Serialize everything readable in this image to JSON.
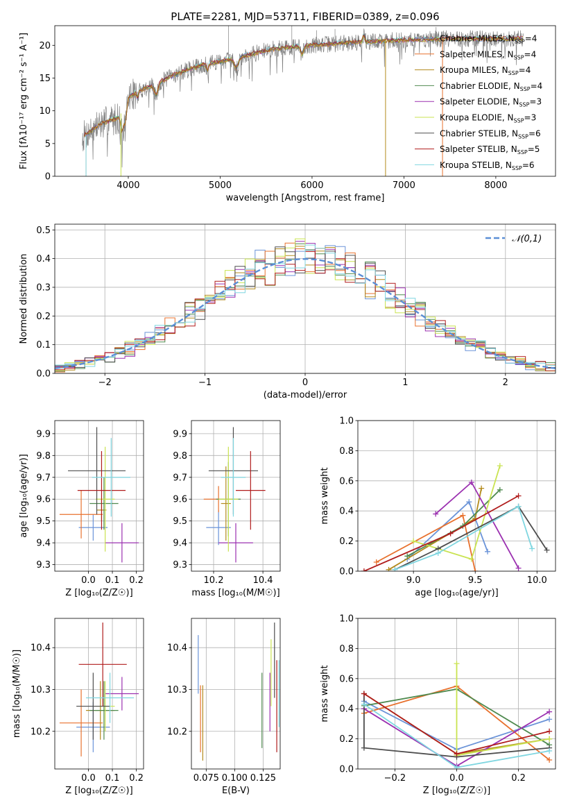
{
  "series_colors": [
    "#6a93d8",
    "#e8712d",
    "#b38a1c",
    "#4f8a4f",
    "#9b30b0",
    "#c9e350",
    "#4d4d4d",
    "#b01c1c",
    "#7fd6e0"
  ],
  "chart_data": [
    {
      "id": "spectrum",
      "type": "line",
      "title": "PLATE=2281, MJD=53711, FIBERID=0389, z=0.096",
      "xlabel": "wavelength [Angstrom, rest frame]",
      "ylabel": "Flux [fλ10⁻¹⁷ erg cm⁻² s⁻¹ A⁻¹]",
      "xlim": [
        3200,
        8650
      ],
      "ylim": [
        0,
        23
      ],
      "xticks": [
        4000,
        5000,
        6000,
        7000,
        8000
      ],
      "yticks": [
        0,
        5,
        10,
        15,
        20
      ],
      "wavelength_range": [
        3500,
        8300
      ],
      "grid": false,
      "legend_position": "upper-right",
      "legend": [
        "Chabrier MILES, N_SSP=4",
        "Salpeter MILES, N_SSP=4",
        "Kroupa MILES, N_SSP=4",
        "Chabrier ELODIE, N_SSP=4",
        "Salpeter ELODIE, N_SSP=3",
        "Kroupa ELODIE, N_SSP=3",
        "Chabrier STELIB, N_SSP=6",
        "Salpeter STELIB, N_SSP=5",
        "Kroupa STELIB, N_SSP=6"
      ],
      "continuum": {
        "x": [
          3500,
          3700,
          3900,
          4000,
          4100,
          4300,
          4500,
          4800,
          5000,
          5300,
          5600,
          6000,
          6500,
          7000,
          7500,
          8000,
          8300
        ],
        "y": [
          6,
          8,
          9,
          12,
          13,
          14,
          15.5,
          17,
          17.5,
          18.5,
          19.5,
          20,
          20.5,
          20.8,
          21,
          21,
          21
        ]
      },
      "model_cutoffs_x": [
        3540,
        3540,
        3920,
        6800,
        7420
      ]
    },
    {
      "id": "residuals",
      "type": "histogram",
      "xlabel": "(data-model)/error",
      "ylabel": "Normed distribution",
      "xlim": [
        -2.5,
        2.5
      ],
      "ylim": [
        0,
        0.52
      ],
      "xticks": [
        -2,
        -1,
        0,
        1,
        2
      ],
      "yticks": [
        0,
        0.1,
        0.2,
        0.3,
        0.4,
        0.5
      ],
      "bin_width": 0.1,
      "grid": true,
      "legend_position": "upper-right",
      "legend": [
        "𝒩(0,1)"
      ]
    },
    {
      "id": "age-vs-z",
      "type": "scatter",
      "xlabel": "Z [log₁₀(Z/Z☉)]",
      "ylabel": "age  [log₁₀(age/yr)]",
      "xlim": [
        -0.14,
        0.23
      ],
      "ylim": [
        9.27,
        9.96
      ],
      "xticks": [
        0.0,
        0.1,
        0.2
      ],
      "yticks": [
        9.3,
        9.4,
        9.5,
        9.6,
        9.7,
        9.8,
        9.9
      ],
      "grid": true,
      "points": [
        {
          "x": 0.02,
          "xerr": 0.06,
          "y": 9.47,
          "yerr": 0.06
        },
        {
          "x": -0.03,
          "xerr": 0.09,
          "y": 9.53,
          "yerr": 0.11
        },
        {
          "x": 0.055,
          "xerr": 0.02,
          "y": 9.55,
          "yerr": 0.05
        },
        {
          "x": 0.065,
          "xerr": 0.06,
          "y": 9.58,
          "yerr": 0.12
        },
        {
          "x": 0.14,
          "xerr": 0.07,
          "y": 9.4,
          "yerr": 0.09
        },
        {
          "x": 0.07,
          "xerr": 0.04,
          "y": 9.6,
          "yerr": 0.24
        },
        {
          "x": 0.035,
          "xerr": 0.12,
          "y": 9.73,
          "yerr": 0.2
        },
        {
          "x": 0.055,
          "xerr": 0.1,
          "y": 9.64,
          "yerr": 0.18
        },
        {
          "x": 0.095,
          "xerr": 0.08,
          "y": 9.7,
          "yerr": 0.18
        }
      ]
    },
    {
      "id": "age-vs-mass",
      "type": "scatter",
      "xlabel": "mass [log₁₀(M/M☉)]",
      "ylabel": "",
      "xlim": [
        10.11,
        10.47
      ],
      "ylim": [
        9.27,
        9.96
      ],
      "xticks": [
        10.2,
        10.4
      ],
      "yticks": [
        9.3,
        9.4,
        9.5,
        9.6,
        9.7,
        9.8,
        9.9
      ],
      "grid": true,
      "points": [
        {
          "x": 10.22,
          "xerr": 0.05,
          "y": 9.47,
          "yerr": 0.08
        },
        {
          "x": 10.22,
          "xerr": 0.06,
          "y": 9.6,
          "yerr": 0.06
        },
        {
          "x": 10.25,
          "xerr": 0.02,
          "y": 9.58,
          "yerr": 0.17
        },
        {
          "x": 10.26,
          "xerr": 0.05,
          "y": 9.6,
          "yerr": 0.17
        },
        {
          "x": 10.29,
          "xerr": 0.07,
          "y": 9.4,
          "yerr": 0.09
        },
        {
          "x": 10.26,
          "xerr": 0.04,
          "y": 9.6,
          "yerr": 0.24
        },
        {
          "x": 10.28,
          "xerr": 0.1,
          "y": 9.73,
          "yerr": 0.2
        },
        {
          "x": 10.35,
          "xerr": 0.06,
          "y": 9.64,
          "yerr": 0.18
        },
        {
          "x": 10.28,
          "xerr": 0.05,
          "y": 9.7,
          "yerr": 0.18
        }
      ]
    },
    {
      "id": "mass-weight-vs-age",
      "type": "line",
      "xlabel": "age  [log₁₀(age/yr)]",
      "ylabel": "mass weight",
      "xlim": [
        8.55,
        10.15
      ],
      "ylim": [
        0,
        1
      ],
      "xticks": [
        9.0,
        9.5,
        10.0
      ],
      "yticks": [
        0.0,
        0.2,
        0.4,
        0.6,
        0.8,
        1.0
      ],
      "grid": true,
      "series": [
        {
          "x": [
            8.95,
            9.45,
            9.6
          ],
          "y": [
            0.08,
            0.46,
            0.13
          ]
        },
        {
          "x": [
            8.7,
            9.4,
            9.5
          ],
          "y": [
            0.06,
            0.37,
            0.0
          ]
        },
        {
          "x": [
            8.8,
            9.5,
            9.55
          ],
          "y": [
            0.01,
            0.35,
            0.55
          ]
        },
        {
          "x": [
            8.95,
            9.4,
            9.7
          ],
          "y": [
            0.1,
            0.3,
            0.54
          ]
        },
        {
          "x": [
            9.18,
            9.47,
            9.85
          ],
          "y": [
            0.38,
            0.59,
            0.02
          ]
        },
        {
          "x": [
            9.0,
            9.47,
            9.7
          ],
          "y": [
            0.2,
            0.08,
            0.7
          ]
        },
        {
          "x": [
            8.85,
            9.2,
            9.85,
            10.08
          ],
          "y": [
            0.01,
            0.15,
            0.43,
            0.14
          ]
        },
        {
          "x": [
            8.6,
            9.3,
            9.85
          ],
          "y": [
            0.0,
            0.25,
            0.5
          ]
        },
        {
          "x": [
            8.85,
            9.2,
            9.85,
            9.96
          ],
          "y": [
            0.01,
            0.12,
            0.43,
            0.15
          ]
        }
      ]
    },
    {
      "id": "mass-vs-z",
      "type": "scatter",
      "xlabel": "Z [log₁₀(Z/Z☉)]",
      "ylabel": "mass [log₁₀(M/M☉)]",
      "xlim": [
        -0.14,
        0.23
      ],
      "ylim": [
        10.11,
        10.47
      ],
      "xticks": [
        0.0,
        0.1,
        0.2
      ],
      "yticks": [
        10.2,
        10.3,
        10.4
      ],
      "grid": true,
      "points": [
        {
          "x": 0.02,
          "xerr": 0.07,
          "y": 10.21,
          "yerr": 0.06
        },
        {
          "x": -0.03,
          "xerr": 0.09,
          "y": 10.22,
          "yerr": 0.08
        },
        {
          "x": 0.05,
          "xerr": 0.06,
          "y": 10.25,
          "yerr": 0.07
        },
        {
          "x": 0.065,
          "xerr": 0.06,
          "y": 10.25,
          "yerr": 0.07
        },
        {
          "x": 0.14,
          "xerr": 0.07,
          "y": 10.29,
          "yerr": 0.04
        },
        {
          "x": 0.07,
          "xerr": 0.04,
          "y": 10.26,
          "yerr": 0.06
        },
        {
          "x": 0.02,
          "xerr": 0.07,
          "y": 10.26,
          "yerr": 0.08
        },
        {
          "x": 0.06,
          "xerr": 0.1,
          "y": 10.36,
          "yerr": 0.1
        },
        {
          "x": 0.09,
          "xerr": 0.1,
          "y": 10.28,
          "yerr": 0.06
        }
      ]
    },
    {
      "id": "mass-vs-ebv",
      "type": "scatter",
      "xlabel": "E(B-V)",
      "ylabel": "",
      "xlim": [
        0.062,
        0.14
      ],
      "ylim": [
        10.11,
        10.47
      ],
      "xticks": [
        0.075,
        0.1,
        0.125
      ],
      "xtick_labels": [
        "0.075",
        "0.100",
        "0.125"
      ],
      "yticks": [
        10.2,
        10.3,
        10.4
      ],
      "grid": true,
      "points": [
        {
          "x": 0.068,
          "y": 10.36,
          "yerr": 0.07
        },
        {
          "x": 0.07,
          "y": 10.23,
          "yerr": 0.08
        },
        {
          "x": 0.072,
          "y": 10.22,
          "yerr": 0.09
        },
        {
          "x": 0.124,
          "y": 10.25,
          "yerr": 0.09
        },
        {
          "x": 0.131,
          "y": 10.27,
          "yerr": 0.07
        },
        {
          "x": 0.132,
          "y": 10.34,
          "yerr": 0.08
        },
        {
          "x": 0.135,
          "y": 10.37,
          "yerr": 0.09
        },
        {
          "x": 0.137,
          "y": 10.26,
          "yerr": 0.11
        },
        {
          "x": 0.139,
          "y": 10.29,
          "yerr": 0.08
        }
      ]
    },
    {
      "id": "mass-weight-vs-z",
      "type": "line",
      "xlabel": "Z [log₁₀(Z/Z☉)]",
      "ylabel": "mass weight",
      "xlim": [
        -0.32,
        0.32
      ],
      "ylim": [
        0,
        1
      ],
      "xticks": [
        -0.2,
        0.0,
        0.2
      ],
      "yticks": [
        0.0,
        0.2,
        0.4,
        0.6,
        0.8,
        1.0
      ],
      "grid": true,
      "series": [
        {
          "x": [
            -0.3,
            0.0,
            0.3
          ],
          "y": [
            0.45,
            0.13,
            0.33
          ]
        },
        {
          "x": [
            -0.3,
            0.0,
            0.3
          ],
          "y": [
            0.37,
            0.55,
            0.06
          ]
        },
        {
          "x": [
            -0.3,
            0.0,
            0.3
          ],
          "y": [
            0.5,
            0.1,
            0.2
          ]
        },
        {
          "x": [
            -0.3,
            0.0,
            0.3
          ],
          "y": [
            0.42,
            0.53,
            0.16
          ]
        },
        {
          "x": [
            -0.3,
            0.0,
            0.3
          ],
          "y": [
            0.4,
            0.02,
            0.38
          ]
        },
        {
          "x": [
            0.0,
            0.0,
            0.3
          ],
          "y": [
            0.7,
            0.09,
            0.2
          ]
        },
        {
          "x": [
            -0.3,
            -0.3,
            0.0,
            0.3
          ],
          "y": [
            0.5,
            0.14,
            0.08,
            0.14
          ]
        },
        {
          "x": [
            -0.3,
            0.0,
            0.3
          ],
          "y": [
            0.5,
            0.1,
            0.25
          ]
        },
        {
          "x": [
            -0.3,
            0.0,
            0.3
          ],
          "y": [
            0.43,
            0.01,
            0.12
          ]
        }
      ]
    }
  ]
}
